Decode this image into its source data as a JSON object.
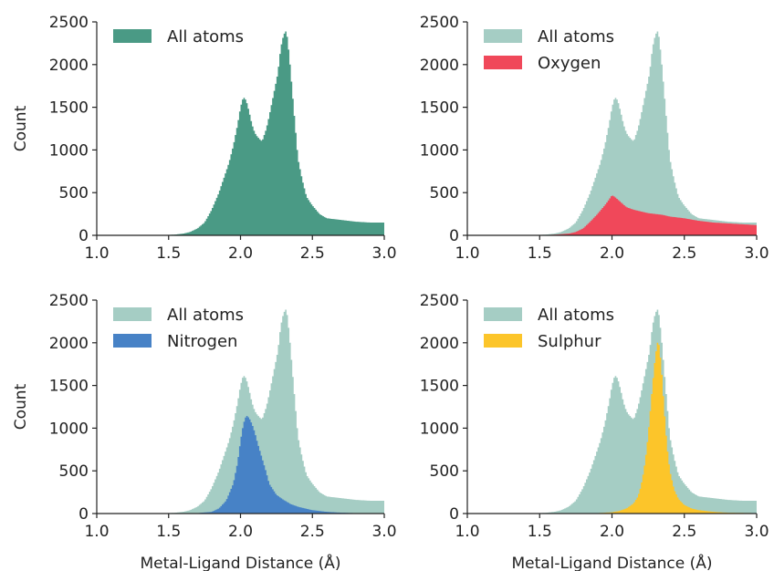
{
  "chart_data": [
    {
      "type": "histogram",
      "panel": "top-left",
      "xlabel": "",
      "ylabel": "Count",
      "xlim": [
        1.0,
        3.0
      ],
      "ylim": [
        0,
        2500
      ],
      "xticks": [
        "1.0",
        "1.5",
        "2.0",
        "2.5",
        "3.0"
      ],
      "yticks": [
        "0",
        "500",
        "1000",
        "1500",
        "2000",
        "2500"
      ],
      "grid": false,
      "legend_position": "top-left",
      "series": [
        {
          "name": "All atoms",
          "color": "#4a9a85",
          "opacity": 1.0,
          "x": [
            1.0,
            1.1,
            1.2,
            1.3,
            1.4,
            1.5,
            1.55,
            1.6,
            1.65,
            1.7,
            1.75,
            1.8,
            1.85,
            1.88,
            1.92,
            1.95,
            1.98,
            2.0,
            2.02,
            2.04,
            2.06,
            2.08,
            2.1,
            2.12,
            2.15,
            2.18,
            2.2,
            2.23,
            2.26,
            2.28,
            2.3,
            2.32,
            2.34,
            2.36,
            2.38,
            2.4,
            2.43,
            2.46,
            2.5,
            2.55,
            2.6,
            2.7,
            2.8,
            2.9,
            3.0
          ],
          "values": [
            0,
            0,
            0,
            0,
            2,
            5,
            10,
            20,
            40,
            80,
            150,
            300,
            500,
            650,
            850,
            1050,
            1300,
            1500,
            1620,
            1580,
            1450,
            1300,
            1200,
            1150,
            1100,
            1250,
            1400,
            1650,
            1900,
            2200,
            2350,
            2400,
            2100,
            1700,
            1300,
            900,
            650,
            450,
            350,
            250,
            200,
            180,
            160,
            150,
            150
          ]
        }
      ]
    },
    {
      "type": "histogram",
      "panel": "top-right",
      "xlabel": "",
      "ylabel": "",
      "xlim": [
        1.0,
        3.0
      ],
      "ylim": [
        0,
        2500
      ],
      "xticks": [
        "1.0",
        "1.5",
        "2.0",
        "2.5",
        "3.0"
      ],
      "yticks": [
        "0",
        "500",
        "1000",
        "1500",
        "2000",
        "2500"
      ],
      "grid": false,
      "legend_position": "top-left",
      "series": [
        {
          "name": "All atoms",
          "color": "#a5cdc4",
          "opacity": 1.0,
          "x": [
            1.0,
            1.1,
            1.2,
            1.3,
            1.4,
            1.5,
            1.55,
            1.6,
            1.65,
            1.7,
            1.75,
            1.8,
            1.85,
            1.88,
            1.92,
            1.95,
            1.98,
            2.0,
            2.02,
            2.04,
            2.06,
            2.08,
            2.1,
            2.12,
            2.15,
            2.18,
            2.2,
            2.23,
            2.26,
            2.28,
            2.3,
            2.32,
            2.34,
            2.36,
            2.38,
            2.4,
            2.43,
            2.46,
            2.5,
            2.55,
            2.6,
            2.7,
            2.8,
            2.9,
            3.0
          ],
          "values": [
            0,
            0,
            0,
            0,
            2,
            5,
            10,
            20,
            40,
            80,
            150,
            300,
            500,
            650,
            850,
            1050,
            1300,
            1500,
            1620,
            1580,
            1450,
            1300,
            1200,
            1150,
            1100,
            1250,
            1400,
            1650,
            1900,
            2200,
            2350,
            2400,
            2100,
            1700,
            1300,
            900,
            650,
            450,
            350,
            250,
            200,
            180,
            160,
            150,
            150
          ]
        },
        {
          "name": "Oxygen",
          "color": "#f0485a",
          "opacity": 1.0,
          "x": [
            1.0,
            1.1,
            1.2,
            1.3,
            1.4,
            1.5,
            1.6,
            1.7,
            1.75,
            1.8,
            1.85,
            1.9,
            1.95,
            1.98,
            2.0,
            2.02,
            2.04,
            2.06,
            2.1,
            2.15,
            2.2,
            2.25,
            2.3,
            2.35,
            2.4,
            2.5,
            2.6,
            2.7,
            2.8,
            2.9,
            3.0
          ],
          "values": [
            0,
            0,
            0,
            0,
            0,
            2,
            8,
            20,
            40,
            80,
            160,
            250,
            350,
            420,
            470,
            450,
            420,
            390,
            330,
            300,
            280,
            260,
            250,
            240,
            220,
            200,
            170,
            150,
            140,
            130,
            120
          ]
        }
      ]
    },
    {
      "type": "histogram",
      "panel": "bottom-left",
      "xlabel": "Metal-Ligand Distance (Å)",
      "ylabel": "Count",
      "xlim": [
        1.0,
        3.0
      ],
      "ylim": [
        0,
        2500
      ],
      "xticks": [
        "1.0",
        "1.5",
        "2.0",
        "2.5",
        "3.0"
      ],
      "yticks": [
        "0",
        "500",
        "1000",
        "1500",
        "2000",
        "2500"
      ],
      "grid": false,
      "legend_position": "top-left",
      "series": [
        {
          "name": "All atoms",
          "color": "#a5cdc4",
          "opacity": 1.0,
          "x": [
            1.0,
            1.1,
            1.2,
            1.3,
            1.4,
            1.5,
            1.55,
            1.6,
            1.65,
            1.7,
            1.75,
            1.8,
            1.85,
            1.88,
            1.92,
            1.95,
            1.98,
            2.0,
            2.02,
            2.04,
            2.06,
            2.08,
            2.1,
            2.12,
            2.15,
            2.18,
            2.2,
            2.23,
            2.26,
            2.28,
            2.3,
            2.32,
            2.34,
            2.36,
            2.38,
            2.4,
            2.43,
            2.46,
            2.5,
            2.55,
            2.6,
            2.7,
            2.8,
            2.9,
            3.0
          ],
          "values": [
            0,
            0,
            0,
            0,
            2,
            5,
            10,
            20,
            40,
            80,
            150,
            300,
            500,
            650,
            850,
            1050,
            1300,
            1500,
            1620,
            1580,
            1450,
            1300,
            1200,
            1150,
            1100,
            1250,
            1400,
            1650,
            1900,
            2200,
            2350,
            2400,
            2100,
            1700,
            1300,
            900,
            650,
            450,
            350,
            250,
            200,
            180,
            160,
            150,
            150
          ]
        },
        {
          "name": "Nitrogen",
          "color": "#4782c6",
          "opacity": 1.0,
          "x": [
            1.0,
            1.5,
            1.7,
            1.8,
            1.85,
            1.9,
            1.95,
            1.98,
            2.0,
            2.02,
            2.04,
            2.06,
            2.08,
            2.1,
            2.12,
            2.15,
            2.18,
            2.2,
            2.25,
            2.3,
            2.35,
            2.4,
            2.5,
            2.6,
            2.7,
            2.8,
            2.9,
            3.0
          ],
          "values": [
            0,
            0,
            5,
            20,
            60,
            150,
            350,
            600,
            850,
            1050,
            1150,
            1120,
            1050,
            950,
            820,
            650,
            480,
            350,
            220,
            160,
            110,
            80,
            40,
            20,
            10,
            5,
            3,
            2
          ]
        }
      ]
    },
    {
      "type": "histogram",
      "panel": "bottom-right",
      "xlabel": "Metal-Ligand Distance (Å)",
      "ylabel": "",
      "xlim": [
        1.0,
        3.0
      ],
      "ylim": [
        0,
        2500
      ],
      "xticks": [
        "1.0",
        "1.5",
        "2.0",
        "2.5",
        "3.0"
      ],
      "yticks": [
        "0",
        "500",
        "1000",
        "1500",
        "2000",
        "2500"
      ],
      "grid": false,
      "legend_position": "top-left",
      "series": [
        {
          "name": "All atoms",
          "color": "#a5cdc4",
          "opacity": 1.0,
          "x": [
            1.0,
            1.1,
            1.2,
            1.3,
            1.4,
            1.5,
            1.55,
            1.6,
            1.65,
            1.7,
            1.75,
            1.8,
            1.85,
            1.88,
            1.92,
            1.95,
            1.98,
            2.0,
            2.02,
            2.04,
            2.06,
            2.08,
            2.1,
            2.12,
            2.15,
            2.18,
            2.2,
            2.23,
            2.26,
            2.28,
            2.3,
            2.32,
            2.34,
            2.36,
            2.38,
            2.4,
            2.43,
            2.46,
            2.5,
            2.55,
            2.6,
            2.7,
            2.8,
            2.9,
            3.0
          ],
          "values": [
            0,
            0,
            0,
            0,
            2,
            5,
            10,
            20,
            40,
            80,
            150,
            300,
            500,
            650,
            850,
            1050,
            1300,
            1500,
            1620,
            1580,
            1450,
            1300,
            1200,
            1150,
            1100,
            1250,
            1400,
            1650,
            1900,
            2200,
            2350,
            2400,
            2100,
            1700,
            1300,
            900,
            650,
            450,
            350,
            250,
            200,
            180,
            160,
            150,
            150
          ]
        },
        {
          "name": "Sulphur",
          "color": "#fcc52a",
          "opacity": 1.0,
          "x": [
            1.0,
            1.8,
            1.9,
            2.0,
            2.05,
            2.1,
            2.15,
            2.18,
            2.2,
            2.22,
            2.24,
            2.26,
            2.28,
            2.3,
            2.32,
            2.34,
            2.36,
            2.38,
            2.4,
            2.43,
            2.46,
            2.5,
            2.55,
            2.6,
            2.7,
            2.8,
            3.0
          ],
          "values": [
            0,
            0,
            5,
            15,
            30,
            60,
            120,
            200,
            320,
            500,
            750,
            1100,
            1500,
            1850,
            2050,
            1750,
            1250,
            800,
            500,
            280,
            170,
            100,
            60,
            40,
            20,
            10,
            5
          ]
        }
      ]
    }
  ]
}
